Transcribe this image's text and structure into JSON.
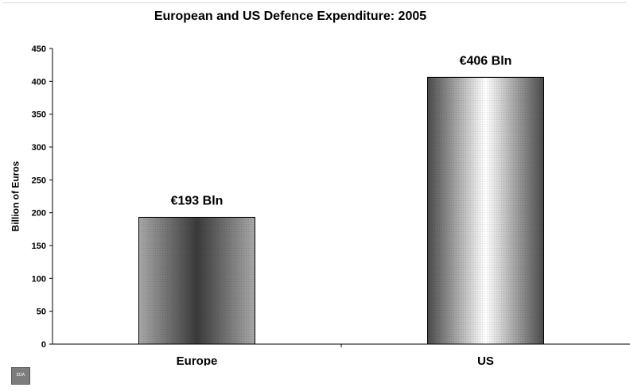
{
  "chart_data": {
    "type": "bar",
    "title": "European and US Defence Expenditure: 2005",
    "xlabel": "",
    "ylabel": "Billion of Euros",
    "categories": [
      "Europe",
      "US"
    ],
    "values": [
      193,
      406
    ],
    "data_labels": [
      "€193 Bln",
      "€406 Bln"
    ],
    "ylim": [
      0,
      450
    ],
    "yticks": [
      0,
      50,
      100,
      150,
      200,
      250,
      300,
      350,
      400,
      450
    ],
    "grid": false,
    "legend": "none",
    "bar_shading": [
      "center-dark",
      "center-light"
    ]
  },
  "logo": {
    "text": "EDA",
    "icon": "eda-logo-icon"
  },
  "colors": {
    "bar_dark": "#3a3a3a",
    "bar_mid": "#8a8a8a",
    "bar_light": "#ffffff",
    "axis": "#000000"
  }
}
